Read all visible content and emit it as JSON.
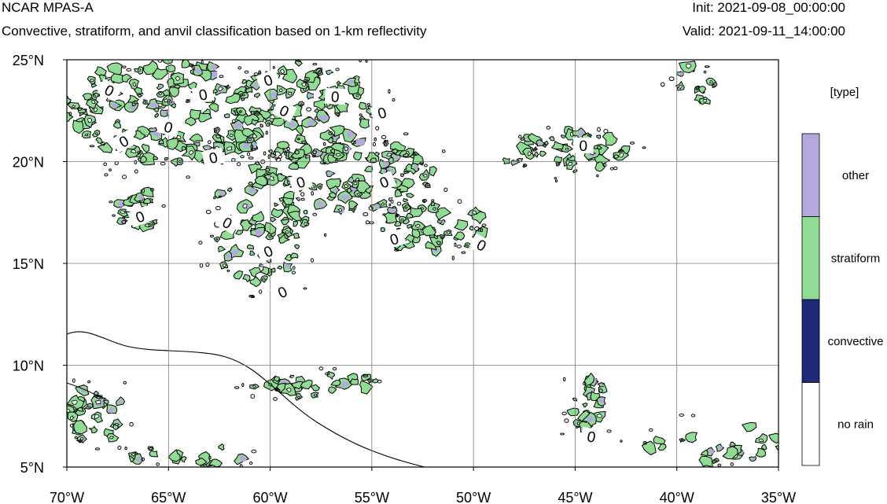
{
  "header": {
    "model": "NCAR MPAS-A",
    "subtitle": "Convective, stratiform, and anvil classification based on 1-km reflectivity",
    "init": "Init: 2021-09-08_00:00:00",
    "valid": "Valid: 2021-09-11_14:00:00"
  },
  "map": {
    "lon_range": [
      -70,
      -35
    ],
    "lat_range": [
      5,
      25
    ],
    "lon_ticks": [
      {
        "value": -70,
        "label": "70°W"
      },
      {
        "value": -65,
        "label": "65°W"
      },
      {
        "value": -60,
        "label": "60°W"
      },
      {
        "value": -55,
        "label": "55°W"
      },
      {
        "value": -50,
        "label": "50°W"
      },
      {
        "value": -45,
        "label": "45°W"
      },
      {
        "value": -40,
        "label": "40°W"
      },
      {
        "value": -35,
        "label": "35°W"
      }
    ],
    "lat_ticks": [
      {
        "value": 25,
        "label": "25°N"
      },
      {
        "value": 20,
        "label": "20°N"
      },
      {
        "value": 15,
        "label": "15°N"
      },
      {
        "value": 10,
        "label": "10°N"
      },
      {
        "value": 5,
        "label": "5°N"
      }
    ],
    "grid": true,
    "contour_label": "0",
    "contour_labels_lonlat": [
      [
        -67.9,
        23.5
      ],
      [
        -65.0,
        21.7
      ],
      [
        -63.3,
        23.3
      ],
      [
        -60.1,
        24.0
      ],
      [
        -56.8,
        23.2
      ],
      [
        -59.3,
        22.5
      ],
      [
        -54.5,
        22.4
      ],
      [
        -67.2,
        21.0
      ],
      [
        -62.8,
        20.2
      ],
      [
        -58.5,
        19.0
      ],
      [
        -54.4,
        19.0
      ],
      [
        -66.4,
        17.3
      ],
      [
        -62.1,
        17.0
      ],
      [
        -60.1,
        15.6
      ],
      [
        -59.4,
        13.6
      ],
      [
        -53.9,
        16.2
      ],
      [
        -49.6,
        15.9
      ],
      [
        -44.6,
        20.8
      ],
      [
        -44.2,
        6.5
      ]
    ],
    "precip_clusters": [
      {
        "lon": -65.0,
        "lat": 22.5,
        "rlon": 5.2,
        "rlat": 2.6,
        "n": 150
      },
      {
        "lon": -58.5,
        "lat": 22.3,
        "rlon": 3.5,
        "rlat": 2.7,
        "n": 110
      },
      {
        "lon": -60.5,
        "lat": 17.0,
        "rlon": 2.4,
        "rlat": 3.2,
        "n": 80
      },
      {
        "lon": -55.5,
        "lat": 19.2,
        "rlon": 3.6,
        "rlat": 1.8,
        "n": 80
      },
      {
        "lon": -52.0,
        "lat": 16.8,
        "rlon": 2.6,
        "rlat": 1.3,
        "n": 50
      },
      {
        "lon": -45.5,
        "lat": 20.5,
        "rlon": 3.2,
        "rlat": 1.1,
        "n": 45
      },
      {
        "lon": -66.5,
        "lat": 17.6,
        "rlon": 1.0,
        "rlat": 1.1,
        "n": 20
      },
      {
        "lon": -57.5,
        "lat": 9.0,
        "rlon": 3.5,
        "rlat": 0.6,
        "n": 28
      },
      {
        "lon": -68.5,
        "lat": 7.4,
        "rlon": 1.6,
        "rlat": 1.6,
        "n": 32
      },
      {
        "lon": -64.0,
        "lat": 5.5,
        "rlon": 2.8,
        "rlat": 0.6,
        "n": 18
      },
      {
        "lon": -44.5,
        "lat": 8.0,
        "rlon": 1.3,
        "rlat": 1.3,
        "n": 22
      },
      {
        "lon": -38.0,
        "lat": 6.2,
        "rlon": 3.5,
        "rlat": 1.1,
        "n": 24
      },
      {
        "lon": -39.2,
        "lat": 23.5,
        "rlon": 1.1,
        "rlat": 1.5,
        "n": 12
      }
    ],
    "colors": {
      "stratiform": "#90dc94",
      "other": "#b4a8dc",
      "convective": "#1e2a78",
      "no_rain": "#ffffff",
      "grid": "#7a7a7a",
      "contour": "#000000"
    }
  },
  "colorbar": {
    "title": "[type]",
    "entries": [
      {
        "label": "other",
        "color": "#b4a8dc"
      },
      {
        "label": "stratiform",
        "color": "#90dc94"
      },
      {
        "label": "convective",
        "color": "#1e2a78"
      },
      {
        "label": "no rain",
        "color": "#ffffff"
      }
    ]
  }
}
